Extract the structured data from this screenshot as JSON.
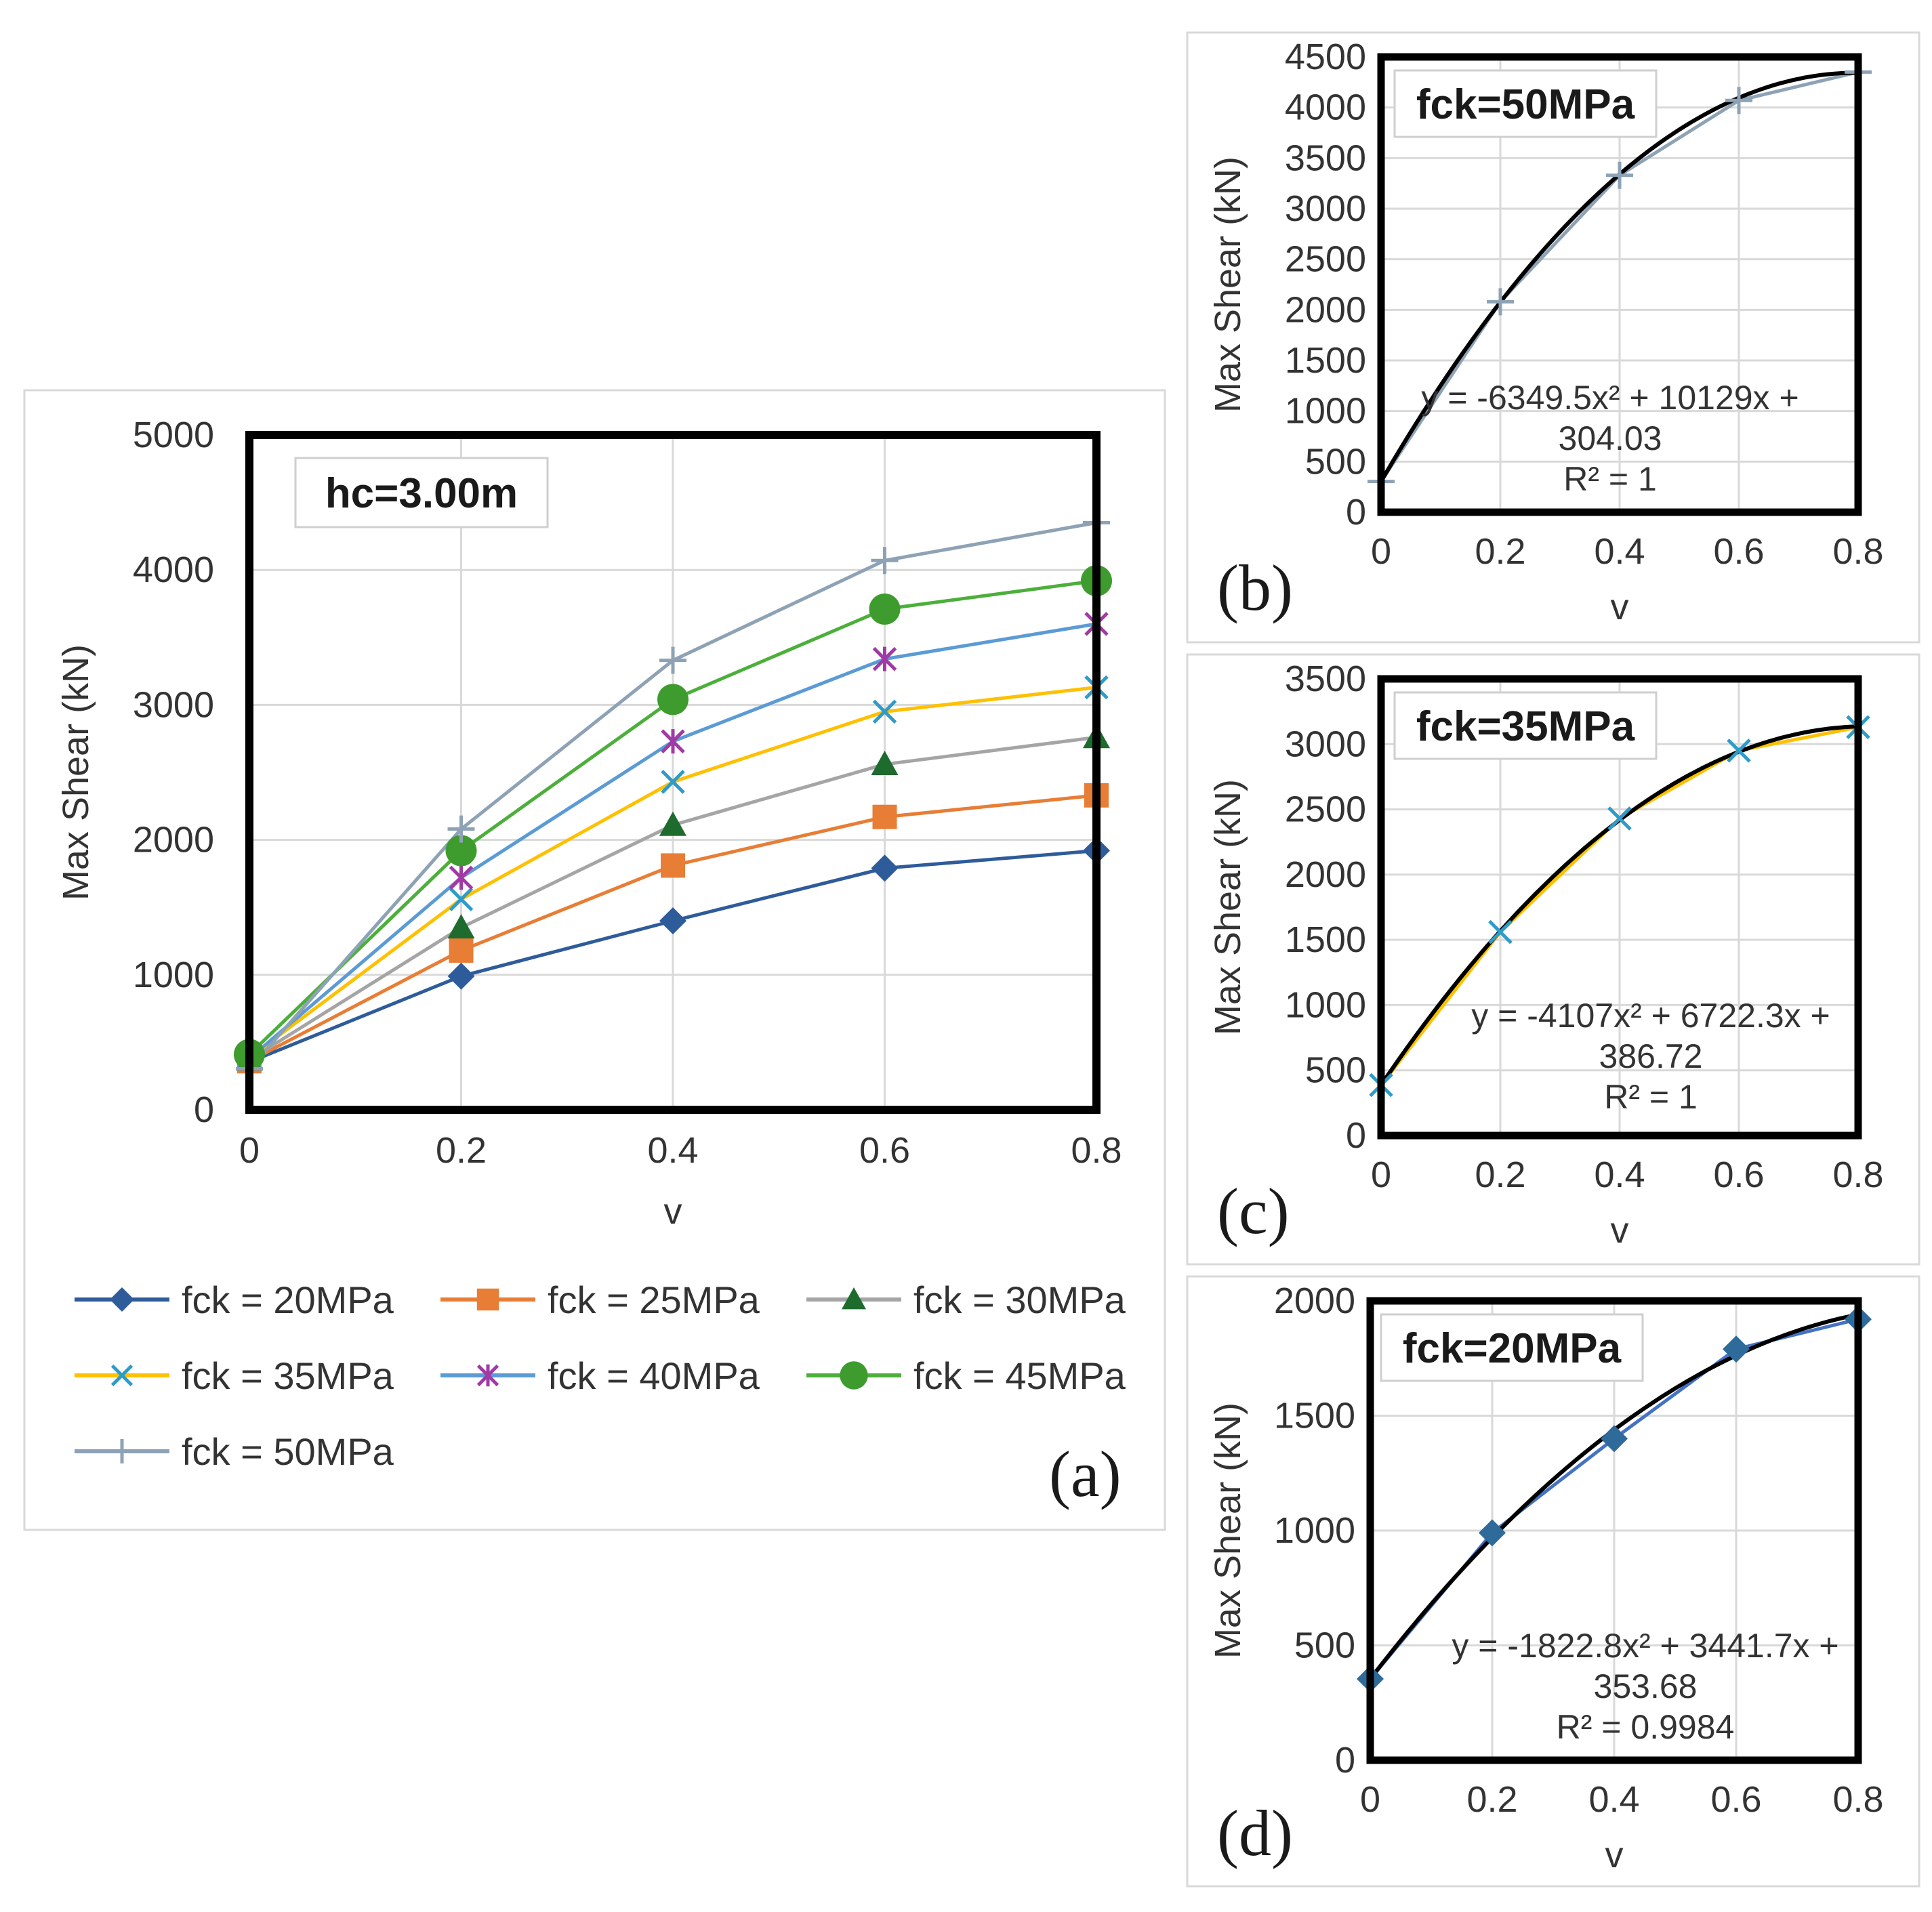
{
  "chart_data": [
    {
      "type": "line",
      "panel_label": "(a)",
      "box_label": "hc=3.00m",
      "xlabel": "v",
      "ylabel": "Max Shear (kN)",
      "x": [
        0,
        0.2,
        0.4,
        0.6,
        0.8
      ],
      "x_tick_labels": [
        "0",
        "0.2",
        "0.4",
        "0.6",
        "0.8"
      ],
      "y_tick_labels": [
        "0",
        "1000",
        "2000",
        "3000",
        "4000",
        "5000"
      ],
      "xlim": [
        0,
        0.8
      ],
      "ylim": [
        0,
        5000
      ],
      "grid": "vertical and horizontal major gridlines",
      "legend_position": "bottom",
      "series": [
        {
          "name": "fck = 20MPa",
          "color": "#2E5C9A",
          "marker": "diamond",
          "values": [
            354,
            990,
            1400,
            1790,
            1920
          ]
        },
        {
          "name": "fck = 25MPa",
          "color": "#E87D35",
          "marker": "square",
          "values": [
            360,
            1180,
            1810,
            2170,
            2330
          ]
        },
        {
          "name": "fck = 30MPa",
          "color": "#A5A5A5",
          "markerColor": "#1E6B2E",
          "marker": "triangle",
          "values": [
            370,
            1350,
            2110,
            2560,
            2760
          ]
        },
        {
          "name": "fck = 35MPa",
          "color": "#FFC000",
          "markerColor": "#2E9BC8",
          "marker": "x",
          "values": [
            387,
            1560,
            2430,
            2950,
            3130
          ]
        },
        {
          "name": "fck = 40MPa",
          "color": "#5B9BD5",
          "markerColor": "#A03AA5",
          "marker": "asterisk",
          "values": [
            380,
            1720,
            2730,
            3340,
            3600
          ]
        },
        {
          "name": "fck = 45MPa",
          "color": "#4CAF3A",
          "markerColor": "#3E9B2E",
          "marker": "circle",
          "values": [
            410,
            1920,
            3040,
            3710,
            3920
          ]
        },
        {
          "name": "fck = 50MPa",
          "color": "#8EA2B5",
          "marker": "plus",
          "values": [
            304,
            2080,
            3330,
            4070,
            4350
          ]
        }
      ]
    },
    {
      "type": "line",
      "panel_label": "(b)",
      "box_label": "fck=50MPa",
      "xlabel": "v",
      "ylabel": "Max Shear (kN)",
      "x": [
        0,
        0.2,
        0.4,
        0.6,
        0.8
      ],
      "x_tick_labels": [
        "0",
        "0.2",
        "0.4",
        "0.6",
        "0.8"
      ],
      "y_tick_labels": [
        "0",
        "500",
        "1000",
        "1500",
        "2000",
        "2500",
        "3000",
        "3500",
        "4000",
        "4500"
      ],
      "xlim": [
        0,
        0.8
      ],
      "ylim": [
        0,
        4500
      ],
      "series": [
        {
          "name": "fck = 50MPa",
          "color": "#8EA2B5",
          "marker": "plus",
          "values": [
            304,
            2080,
            3330,
            4070,
            4350
          ]
        }
      ],
      "trendline": {
        "type": "polynomial-2",
        "a": -6349.5,
        "b": 10129,
        "c": 304.03,
        "color": "#000000"
      },
      "equation_lines": [
        "y = -6349.5x² + 10129x +",
        "304.03",
        "R² = 1"
      ]
    },
    {
      "type": "line",
      "panel_label": "(c)",
      "box_label": "fck=35MPa",
      "xlabel": "v",
      "ylabel": "Max Shear (kN)",
      "x": [
        0,
        0.2,
        0.4,
        0.6,
        0.8
      ],
      "x_tick_labels": [
        "0",
        "0.2",
        "0.4",
        "0.6",
        "0.8"
      ],
      "y_tick_labels": [
        "0",
        "500",
        "1000",
        "1500",
        "2000",
        "2500",
        "3000",
        "3500"
      ],
      "xlim": [
        0,
        0.8
      ],
      "ylim": [
        0,
        3500
      ],
      "series": [
        {
          "name": "fck = 35MPa",
          "color": "#FFC000",
          "markerColor": "#2E9BC8",
          "marker": "x",
          "values": [
            387,
            1560,
            2430,
            2950,
            3130
          ]
        }
      ],
      "trendline": {
        "type": "polynomial-2",
        "a": -4107,
        "b": 6722.3,
        "c": 386.72,
        "color": "#000000"
      },
      "equation_lines": [
        "y = -4107x² + 6722.3x +",
        "386.72",
        "R² = 1"
      ]
    },
    {
      "type": "line",
      "panel_label": "(d)",
      "box_label": "fck=20MPa",
      "xlabel": "v",
      "ylabel": "Max Shear (kN)",
      "x": [
        0,
        0.2,
        0.4,
        0.6,
        0.8
      ],
      "x_tick_labels": [
        "0",
        "0.2",
        "0.4",
        "0.6",
        "0.8"
      ],
      "y_tick_labels": [
        "0",
        "500",
        "1000",
        "1500",
        "2000"
      ],
      "xlim": [
        0,
        0.8
      ],
      "ylim": [
        0,
        2000
      ],
      "series": [
        {
          "name": "fck = 20MPa",
          "color": "#4472C4",
          "markerColor": "#2E6B9A",
          "marker": "diamond",
          "values": [
            354,
            990,
            1400,
            1790,
            1920
          ]
        }
      ],
      "trendline": {
        "type": "polynomial-2",
        "a": -1822.8,
        "b": 3441.7,
        "c": 353.68,
        "color": "#000000"
      },
      "equation_lines": [
        "y = -1822.8x² + 3441.7x +",
        "353.68",
        "R² = 0.9984"
      ]
    }
  ]
}
